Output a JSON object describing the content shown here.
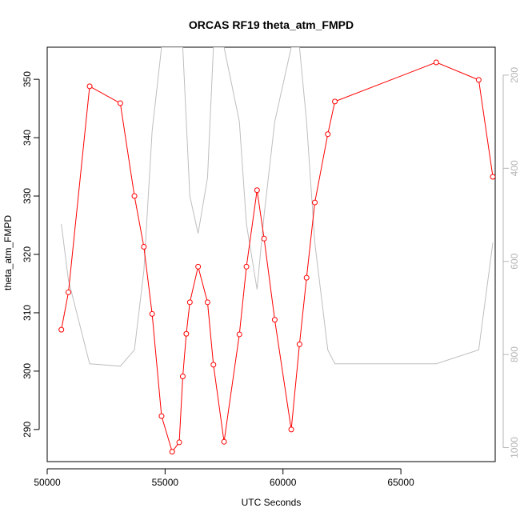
{
  "chart_data": {
    "type": "line",
    "title": "ORCAS RF19 theta_atm_FMPD",
    "xlabel": "UTC Seconds",
    "ylabel": "theta_atm_FMPD",
    "xlim": [
      50000,
      69000
    ],
    "ylim": [
      284.5,
      355.5
    ],
    "y2lim": [
      1030,
      140
    ],
    "x_ticks": [
      50000,
      55000,
      60000,
      65000
    ],
    "y_ticks": [
      290,
      300,
      310,
      320,
      330,
      340,
      350
    ],
    "y2_ticks": [
      200,
      400,
      600,
      800,
      1000
    ],
    "series": [
      {
        "axis": "left",
        "color": "#ff0000",
        "marker": "open-circle",
        "x": [
          50600,
          50900,
          51800,
          53100,
          53700,
          54100,
          54450,
          54850,
          55300,
          55600,
          55750,
          55900,
          56050,
          56400,
          56800,
          57050,
          57500,
          58150,
          58450,
          58900,
          59200,
          59650,
          60350,
          60700,
          61000,
          61350,
          61900,
          62200,
          66500,
          68300,
          68900
        ],
        "y": [
          307.1,
          313.5,
          348.8,
          345.9,
          330.0,
          321.3,
          309.8,
          292.3,
          286.2,
          287.8,
          299.1,
          306.4,
          311.8,
          317.9,
          311.8,
          301.1,
          287.9,
          306.3,
          317.9,
          331.0,
          322.7,
          308.8,
          290.0,
          304.6,
          316.0,
          328.9,
          340.6,
          346.2,
          352.9,
          349.9,
          333.3
        ]
      },
      {
        "axis": "right",
        "color": "#bebebe",
        "marker": "none",
        "x": [
          50600,
          50900,
          51800,
          53100,
          53700,
          54100,
          54450,
          54850,
          55300,
          55600,
          55750,
          55900,
          56050,
          56400,
          56800,
          57050,
          57500,
          58150,
          58450,
          58900,
          59200,
          59650,
          60350,
          60700,
          61000,
          61350,
          61900,
          62200,
          66500,
          68300,
          68900
        ],
        "y": [
          520,
          640,
          820,
          825,
          790,
          620,
          320,
          140,
          140,
          140,
          140,
          300,
          460,
          540,
          420,
          140,
          140,
          300,
          520,
          660,
          500,
          300,
          140,
          140,
          300,
          560,
          790,
          820,
          820,
          790,
          560
        ]
      }
    ]
  }
}
